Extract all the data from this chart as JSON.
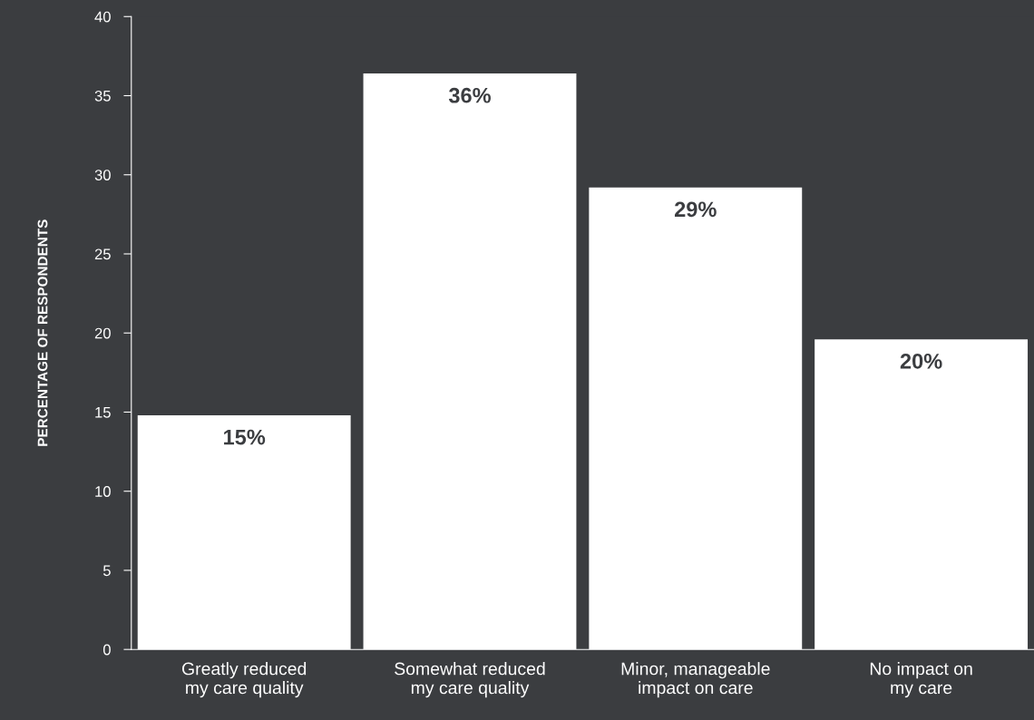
{
  "chart_data": {
    "type": "bar",
    "ylabel": "PERCENTAGE OF RESPONDENTS",
    "categories": [
      "Greatly reduced\nmy care quality",
      "Somewhat reduced\nmy care quality",
      "Minor, manageable\nimpact on care",
      "No impact on\nmy care"
    ],
    "values": [
      14.8,
      36.4,
      29.2,
      19.6
    ],
    "value_labels": [
      "15%",
      "36%",
      "29%",
      "20%"
    ],
    "color": "#ffffff",
    "ylim": [
      0,
      40
    ],
    "yticks": [
      0,
      5,
      10,
      15,
      20,
      25,
      30,
      35,
      40
    ],
    "grid": false,
    "legend": false
  }
}
